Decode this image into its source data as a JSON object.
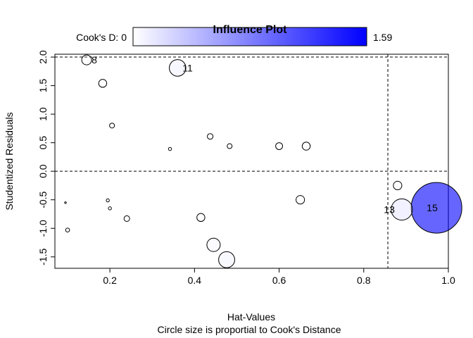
{
  "chart_data": {
    "type": "scatter",
    "title": "Influence Plot",
    "xlabel": "Hat-Values",
    "subtitle": "Circle size is proportial to Cook's Distance",
    "ylabel": "Studentized Residuals",
    "xlim": [
      0.07,
      1.0
    ],
    "ylim": [
      -1.7,
      2.05
    ],
    "xticks": [
      "0.2",
      "0.4",
      "0.6",
      "0.8",
      "1.0"
    ],
    "yticks": [
      "-1.5",
      "-1.0",
      "-0.5",
      "0.0",
      "0.5",
      "1.0",
      "1.5",
      "2.0"
    ],
    "legend": {
      "label_min": "Cook's D: 0",
      "label_max": "1.59",
      "min": 0,
      "max": 1.59,
      "color_low": "#ffffff",
      "color_high": "#0000ff"
    },
    "reference_lines": {
      "h": [
        0.0,
        2.0
      ],
      "v": [
        0.857
      ]
    },
    "points": [
      {
        "x": 0.145,
        "y": 1.95,
        "cooks": 0.06,
        "label": "8"
      },
      {
        "x": 0.36,
        "y": 1.81,
        "cooks": 0.17,
        "label": "11"
      },
      {
        "x": 0.183,
        "y": 1.54,
        "cooks": 0.04,
        "label": ""
      },
      {
        "x": 0.205,
        "y": 0.8,
        "cooks": 0.015,
        "label": ""
      },
      {
        "x": 0.437,
        "y": 0.61,
        "cooks": 0.02,
        "label": ""
      },
      {
        "x": 0.342,
        "y": 0.39,
        "cooks": 0.006,
        "label": ""
      },
      {
        "x": 0.483,
        "y": 0.44,
        "cooks": 0.015,
        "label": ""
      },
      {
        "x": 0.6,
        "y": 0.44,
        "cooks": 0.03,
        "label": ""
      },
      {
        "x": 0.664,
        "y": 0.44,
        "cooks": 0.04,
        "label": ""
      },
      {
        "x": 0.095,
        "y": -0.55,
        "cooks": 0.001,
        "label": ""
      },
      {
        "x": 0.195,
        "y": -0.51,
        "cooks": 0.006,
        "label": ""
      },
      {
        "x": 0.2,
        "y": -0.65,
        "cooks": 0.006,
        "label": ""
      },
      {
        "x": 0.1,
        "y": -1.03,
        "cooks": 0.01,
        "label": ""
      },
      {
        "x": 0.24,
        "y": -0.83,
        "cooks": 0.02,
        "label": ""
      },
      {
        "x": 0.415,
        "y": -0.81,
        "cooks": 0.04,
        "label": ""
      },
      {
        "x": 0.65,
        "y": -0.5,
        "cooks": 0.045,
        "label": ""
      },
      {
        "x": 0.88,
        "y": -0.25,
        "cooks": 0.045,
        "label": ""
      },
      {
        "x": 0.445,
        "y": -1.29,
        "cooks": 0.11,
        "label": ""
      },
      {
        "x": 0.476,
        "y": -1.55,
        "cooks": 0.16,
        "label": ""
      },
      {
        "x": 0.89,
        "y": -0.67,
        "cooks": 0.28,
        "label": "13"
      },
      {
        "x": 0.972,
        "y": -0.64,
        "cooks": 1.59,
        "label": "15"
      }
    ]
  }
}
